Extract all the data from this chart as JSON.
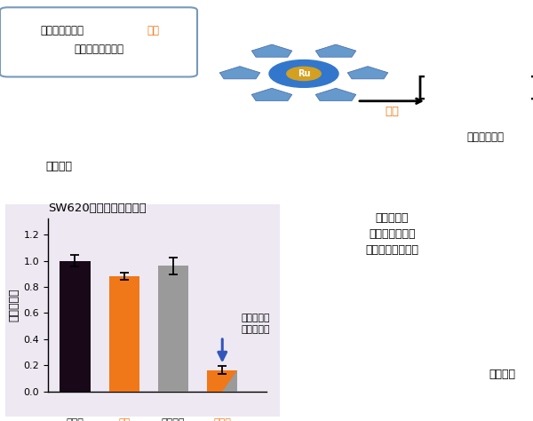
{
  "title": "SW620細胞への毒性試験",
  "ylabel": "細胞生存率",
  "values": [
    1.0,
    0.88,
    0.96,
    0.165
  ],
  "errors": [
    0.045,
    0.028,
    0.062,
    0.028
  ],
  "bar_colors": [
    "#180818",
    "#f07818",
    "#9a9a9a",
    "#f07818"
  ],
  "split_bar_gray": "#9a9a9a",
  "ylim": [
    0,
    1.32
  ],
  "yticks": [
    0.0,
    0.2,
    0.4,
    0.6,
    0.8,
    1.0,
    1.2
  ],
  "bg_color": "#ede8f2",
  "box_edge_color": "#7878b8",
  "annotation_text": "共処理のみ\n抗がん活性",
  "arrow_color": "#3355bb",
  "tick_label_colors": [
    "#111111",
    "#f07818",
    "#111111",
    "#f07818"
  ],
  "figsize": [
    6.0,
    4.74
  ],
  "dpi": 100,
  "top_box_text1": "ペプチドおよび",
  "top_box_text1_orange": "触媒",
  "top_box_text2": "単独では毒性なし",
  "peptide_label": "ペプチド",
  "catalyst_arrow_label": "触媒",
  "reactive_label": "反応性中間体",
  "right_top_label": "ルテニウム\n触媒反応による\n細胞への貼り付け",
  "cancer_label": "がん細胞"
}
